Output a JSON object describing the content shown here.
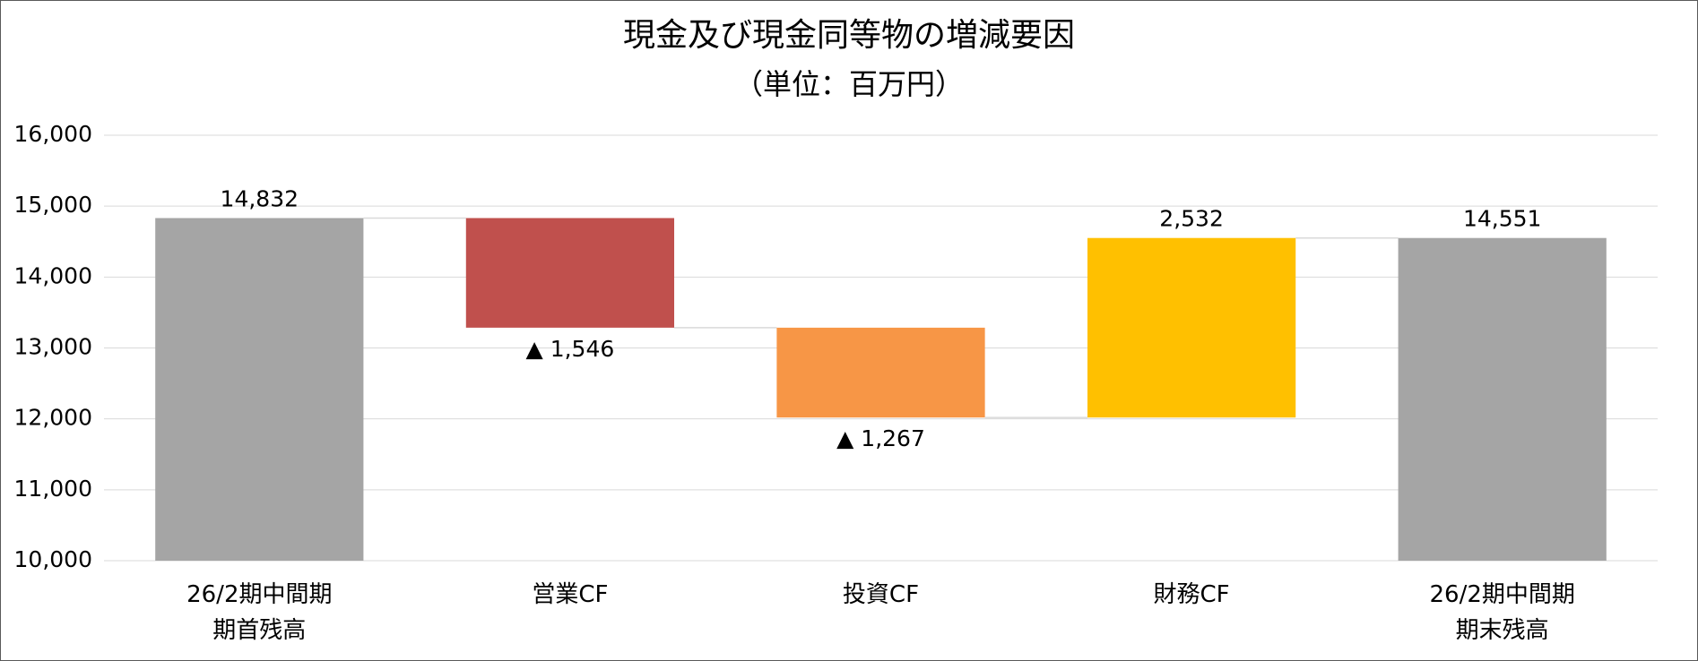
{
  "chart_data": {
    "type": "waterfall",
    "title": "現金及び現金同等物の増減要因",
    "subtitle": "（単位：百万円）",
    "categories": [
      "26/2期中間期\n期首残高",
      "営業CF",
      "投資CF",
      "財務CF",
      "26/2期中間期\n期末残高"
    ],
    "values": [
      14832,
      -1546,
      -1267,
      2532,
      14551
    ],
    "value_labels": [
      "14,832",
      "▲ 1,546",
      "▲ 1,267",
      "2,532",
      "14,551"
    ],
    "colors": [
      "#a5a5a5",
      "#c0504d",
      "#f79646",
      "#ffc000",
      "#a5a5a5"
    ],
    "ylim": [
      10000,
      16000
    ],
    "yticks": [
      {
        "value": 10000,
        "label": "10,000"
      },
      {
        "value": 11000,
        "label": "11,000"
      },
      {
        "value": 12000,
        "label": "12,000"
      },
      {
        "value": 13000,
        "label": "13,000"
      },
      {
        "value": 14000,
        "label": "14,000"
      },
      {
        "value": 15000,
        "label": "15,000"
      },
      {
        "value": 16000,
        "label": "16,000"
      }
    ],
    "grid": true
  }
}
